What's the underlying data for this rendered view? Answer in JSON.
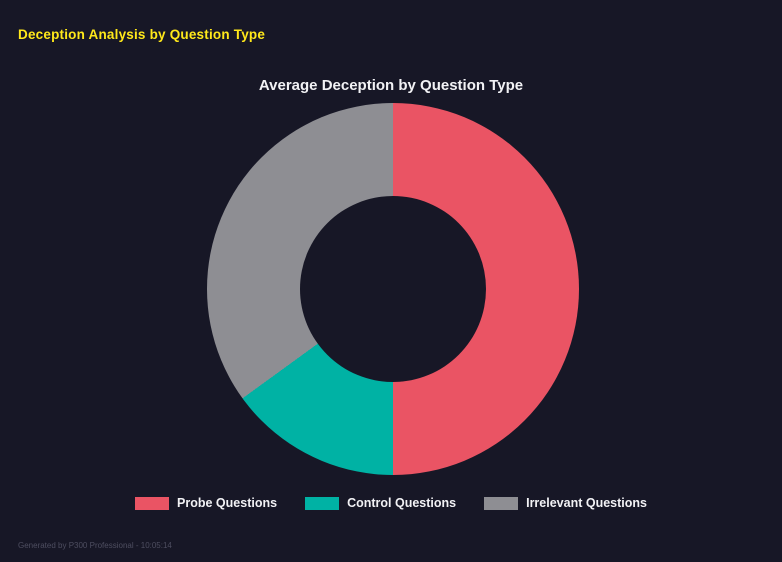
{
  "page": {
    "title": "Deception Analysis by Question Type"
  },
  "chart_data": {
    "type": "pie",
    "subtype": "donut",
    "title": "Average Deception by Question Type",
    "labels": [
      "Probe Questions",
      "Control Questions",
      "Irrelevant Questions"
    ],
    "values": [
      50,
      15,
      35
    ],
    "colors": [
      "#ea5464",
      "#00b2a4",
      "#8e8e93"
    ],
    "start_angle_deg": 0,
    "direction": "clockwise",
    "inner_radius_pct": 50,
    "legend_position": "bottom",
    "background": "#171726"
  },
  "footer": {
    "text": "Generated by P300 Professional - 10:05:14"
  }
}
